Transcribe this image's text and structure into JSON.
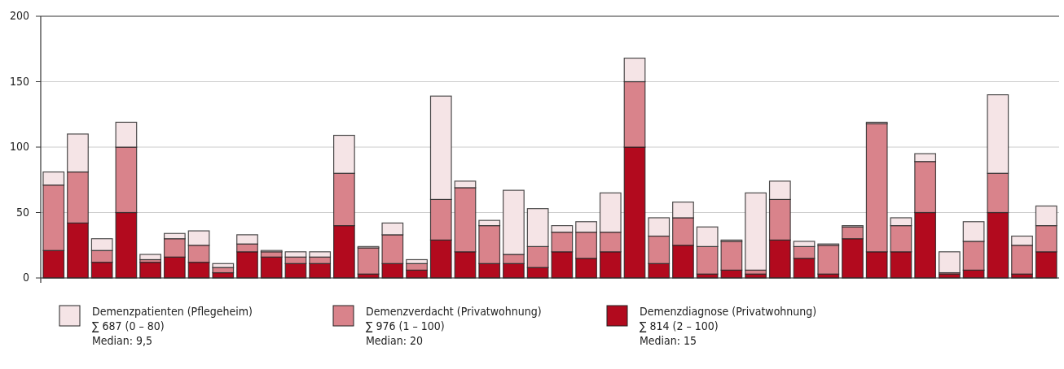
{
  "chart_data": {
    "type": "bar",
    "stacked": true,
    "categories": [
      null,
      null,
      null,
      null,
      null,
      null,
      null,
      null,
      null,
      null,
      null,
      null,
      null,
      null,
      null,
      null,
      null,
      null,
      null,
      null,
      null,
      null,
      null,
      null,
      null,
      null,
      null,
      null,
      null,
      null,
      null,
      null,
      null,
      null,
      null,
      null,
      null,
      null,
      null,
      null,
      null,
      null
    ],
    "series": [
      {
        "name": "Demenzdiagnose (Privatwohnung)",
        "color": "#b20a1e",
        "values": [
          21,
          42,
          12,
          50,
          12,
          16,
          12,
          4,
          20,
          16,
          11,
          11,
          40,
          3,
          11,
          6,
          29,
          20,
          11,
          11,
          8,
          20,
          15,
          20,
          100,
          11,
          25,
          3,
          6,
          3,
          29,
          15,
          3,
          30,
          20,
          20,
          50,
          3,
          6,
          50,
          3,
          20
        ]
      },
      {
        "name": "Demenzverdacht (Privatwohnung)",
        "color": "#d9838b",
        "values": [
          50,
          39,
          9,
          50,
          2,
          14,
          13,
          4,
          6,
          4,
          5,
          5,
          40,
          20,
          22,
          5,
          31,
          49,
          29,
          7,
          16,
          15,
          20,
          15,
          50,
          21,
          21,
          21,
          22,
          3,
          31,
          9,
          22,
          9,
          98,
          20,
          39,
          1,
          22,
          30,
          22,
          20
        ]
      },
      {
        "name": "Demenzpatienten (Pflegeheim)",
        "color": "#f5e4e6",
        "values": [
          10,
          29,
          9,
          19,
          4,
          4,
          11,
          3,
          7,
          1,
          4,
          4,
          29,
          1,
          9,
          3,
          79,
          5,
          4,
          49,
          29,
          5,
          8,
          30,
          18,
          14,
          12,
          15,
          1,
          59,
          14,
          4,
          1,
          1,
          1,
          6,
          6,
          16,
          15,
          60,
          7,
          15
        ]
      }
    ],
    "ylim": [
      0,
      200
    ],
    "yticks": [
      0,
      50,
      100,
      150,
      200
    ],
    "grid": "y",
    "legend": "bottom",
    "tick_labels": "y",
    "annotations": [
      "∑ 687 (0 – 80)",
      "Median: 9,5",
      "∑ 976 (1 – 100)",
      "Median: 20",
      "∑ 814 (2 – 100)",
      "Median: 15"
    ]
  }
}
